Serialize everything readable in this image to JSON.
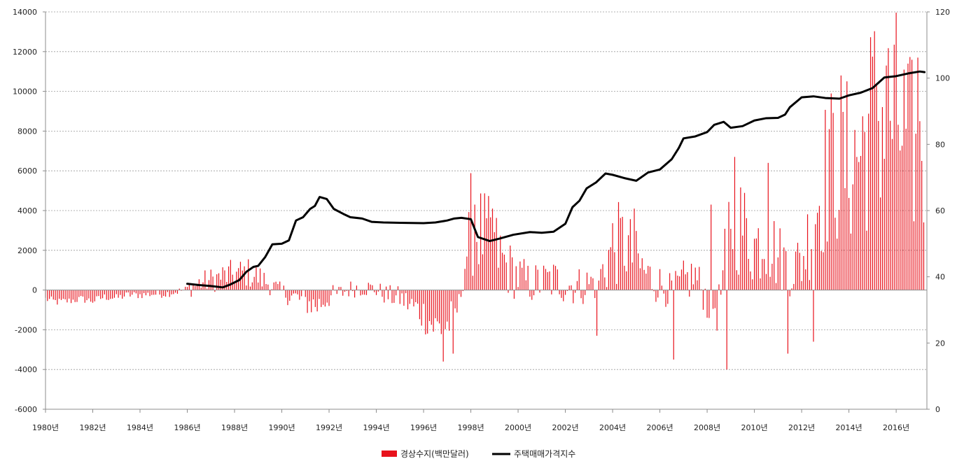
{
  "chart_data": {
    "type": "bar+line",
    "title": "",
    "x_ticks": [
      "1980년",
      "1982년",
      "1984년",
      "1986년",
      "1988년",
      "1990년",
      "1992년",
      "1994년",
      "1996년",
      "1998년",
      "2000년",
      "2002년",
      "2004년",
      "2006년",
      "2008년",
      "2010년",
      "2012년",
      "2014년",
      "2016년"
    ],
    "y_left": {
      "min": -6000,
      "max": 14000,
      "step": 2000,
      "ticks": [
        "-6000",
        "-4000",
        "-2000",
        "0",
        "2000",
        "4000",
        "6000",
        "8000",
        "10000",
        "12000",
        "14000"
      ]
    },
    "y_right": {
      "min": 0,
      "max": 120,
      "step": 20,
      "ticks": [
        "0",
        "20",
        "40",
        "60",
        "80",
        "100",
        "120"
      ]
    },
    "grid": true,
    "legend_position": "bottom",
    "series": [
      {
        "name": "경상수지(백만달러)",
        "kind": "bar",
        "axis": "left",
        "color": "#e8121c",
        "anchors": [
          [
            1980.0,
            -450
          ],
          [
            1980.5,
            -600
          ],
          [
            1981.0,
            -550
          ],
          [
            1981.5,
            -450
          ],
          [
            1982.0,
            -550
          ],
          [
            1982.5,
            -350
          ],
          [
            1983.0,
            -400
          ],
          [
            1983.5,
            -250
          ],
          [
            1984.0,
            -250
          ],
          [
            1984.5,
            -200
          ],
          [
            1985.0,
            -200
          ],
          [
            1985.5,
            -100
          ],
          [
            1986.0,
            50
          ],
          [
            1986.5,
            350
          ],
          [
            1987.0,
            500
          ],
          [
            1987.5,
            700
          ],
          [
            1988.0,
            800
          ],
          [
            1988.5,
            900
          ],
          [
            1989.0,
            650
          ],
          [
            1989.5,
            300
          ],
          [
            1990.0,
            -100
          ],
          [
            1990.5,
            -350
          ],
          [
            1991.0,
            -600
          ],
          [
            1991.5,
            -800
          ],
          [
            1992.0,
            -350
          ],
          [
            1992.5,
            -150
          ],
          [
            1993.0,
            100
          ],
          [
            1993.5,
            150
          ],
          [
            1994.0,
            0
          ],
          [
            1994.5,
            -300
          ],
          [
            1995.0,
            -400
          ],
          [
            1995.5,
            -800
          ],
          [
            1996.0,
            -1200
          ],
          [
            1996.5,
            -1900
          ],
          [
            1997.0,
            -1800
          ],
          [
            1997.5,
            -800
          ],
          [
            1998.0,
            3300
          ],
          [
            1998.5,
            2800
          ],
          [
            1999.0,
            2200
          ],
          [
            1999.5,
            1200
          ],
          [
            2000.0,
            700
          ],
          [
            2000.5,
            300
          ],
          [
            2001.0,
            400
          ],
          [
            2001.5,
            500
          ],
          [
            2002.0,
            300
          ],
          [
            2002.5,
            200
          ],
          [
            2003.0,
            300
          ],
          [
            2003.5,
            700
          ],
          [
            2004.0,
            2200
          ],
          [
            2004.5,
            2400
          ],
          [
            2005.0,
            1400
          ],
          [
            2005.5,
            700
          ],
          [
            2006.0,
            300
          ],
          [
            2006.5,
            -100
          ],
          [
            2007.0,
            400
          ],
          [
            2007.5,
            700
          ],
          [
            2008.0,
            -500
          ],
          [
            2008.5,
            -900
          ],
          [
            2009.0,
            3800
          ],
          [
            2009.5,
            3200
          ],
          [
            2010.0,
            2200
          ],
          [
            2010.5,
            2800
          ],
          [
            2011.0,
            1700
          ],
          [
            2011.5,
            1200
          ],
          [
            2012.0,
            1400
          ],
          [
            2012.5,
            3700
          ],
          [
            2013.0,
            5800
          ],
          [
            2013.5,
            6500
          ],
          [
            2014.0,
            6400
          ],
          [
            2014.5,
            7000
          ],
          [
            2015.0,
            8800
          ],
          [
            2015.5,
            8700
          ],
          [
            2016.0,
            8700
          ],
          [
            2016.5,
            7300
          ],
          [
            2017.0,
            6800
          ]
        ],
        "spikes": [
          [
            1996.8,
            -3600
          ],
          [
            1997.25,
            -3200
          ],
          [
            1998.2,
            4300
          ],
          [
            1998.9,
            4100
          ],
          [
            2003.3,
            -2300
          ],
          [
            2004.9,
            4100
          ],
          [
            2006.6,
            -3500
          ],
          [
            2008.15,
            4300
          ],
          [
            2008.8,
            -4000
          ],
          [
            2009.2,
            6700
          ],
          [
            2010.6,
            6400
          ],
          [
            2011.4,
            -3200
          ],
          [
            2012.5,
            -2600
          ],
          [
            2013.2,
            8100
          ],
          [
            2013.7,
            10800
          ],
          [
            2015.2,
            10400
          ],
          [
            2015.6,
            11300
          ],
          [
            2016.9,
            11700
          ],
          [
            2017.0,
            8500
          ]
        ]
      },
      {
        "name": "주택매매가격지수",
        "kind": "line",
        "axis": "right",
        "color": "#000000",
        "points": [
          [
            1986.0,
            37.9
          ],
          [
            1986.5,
            37.5
          ],
          [
            1987.0,
            37.2
          ],
          [
            1987.5,
            36.8
          ],
          [
            1987.8,
            37.6
          ],
          [
            1988.2,
            39.0
          ],
          [
            1988.5,
            41.5
          ],
          [
            1988.8,
            43.0
          ],
          [
            1989.0,
            43.3
          ],
          [
            1989.3,
            46.0
          ],
          [
            1989.6,
            49.8
          ],
          [
            1990.0,
            50.0
          ],
          [
            1990.3,
            51.0
          ],
          [
            1990.6,
            57.0
          ],
          [
            1990.9,
            58.0
          ],
          [
            1991.2,
            60.5
          ],
          [
            1991.4,
            61.4
          ],
          [
            1991.6,
            64.1
          ],
          [
            1991.9,
            63.5
          ],
          [
            1992.2,
            60.5
          ],
          [
            1992.6,
            59.0
          ],
          [
            1992.9,
            58.0
          ],
          [
            1993.4,
            57.6
          ],
          [
            1993.8,
            56.6
          ],
          [
            1994.3,
            56.4
          ],
          [
            1995.0,
            56.3
          ],
          [
            1996.0,
            56.2
          ],
          [
            1996.5,
            56.4
          ],
          [
            1997.0,
            57.0
          ],
          [
            1997.3,
            57.6
          ],
          [
            1997.6,
            57.8
          ],
          [
            1998.0,
            57.4
          ],
          [
            1998.3,
            52.0
          ],
          [
            1998.8,
            50.8
          ],
          [
            1999.2,
            51.5
          ],
          [
            1999.8,
            52.7
          ],
          [
            2000.5,
            53.5
          ],
          [
            2001.0,
            53.3
          ],
          [
            2001.5,
            53.6
          ],
          [
            2002.0,
            56.0
          ],
          [
            2002.3,
            61.0
          ],
          [
            2002.6,
            63.0
          ],
          [
            2002.9,
            66.7
          ],
          [
            2003.3,
            68.5
          ],
          [
            2003.7,
            71.2
          ],
          [
            2004.0,
            70.8
          ],
          [
            2004.5,
            69.8
          ],
          [
            2005.0,
            69.0
          ],
          [
            2005.5,
            71.5
          ],
          [
            2006.0,
            72.4
          ],
          [
            2006.5,
            75.5
          ],
          [
            2006.8,
            78.9
          ],
          [
            2007.0,
            81.8
          ],
          [
            2007.5,
            82.4
          ],
          [
            2008.0,
            83.7
          ],
          [
            2008.3,
            85.9
          ],
          [
            2008.7,
            86.8
          ],
          [
            2009.0,
            85.0
          ],
          [
            2009.5,
            85.5
          ],
          [
            2010.0,
            87.2
          ],
          [
            2010.5,
            87.9
          ],
          [
            2011.0,
            88.0
          ],
          [
            2011.3,
            89.0
          ],
          [
            2011.5,
            91.2
          ],
          [
            2012.0,
            94.2
          ],
          [
            2012.5,
            94.5
          ],
          [
            2013.0,
            94.0
          ],
          [
            2013.6,
            93.8
          ],
          [
            2014.0,
            94.8
          ],
          [
            2014.5,
            95.6
          ],
          [
            2015.0,
            97.0
          ],
          [
            2015.5,
            100.2
          ],
          [
            2016.0,
            100.6
          ],
          [
            2016.5,
            101.4
          ],
          [
            2017.0,
            102.0
          ],
          [
            2017.2,
            101.8
          ]
        ]
      }
    ]
  }
}
